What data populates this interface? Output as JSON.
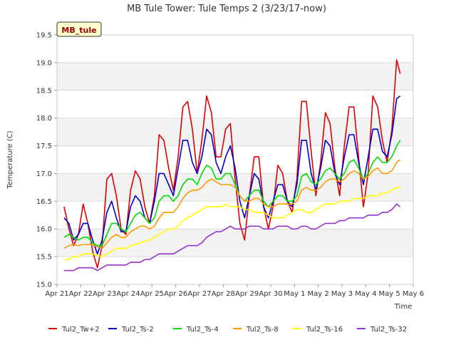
{
  "chart_data": {
    "type": "line",
    "title": "MB Tule Tower: Tule Temps 2 (3/23/17-now)",
    "xlabel": "Time",
    "ylabel": "Temperature (C)",
    "badge": "MB_tule",
    "ylim": [
      15.0,
      19.5
    ],
    "xlim": [
      0,
      15
    ],
    "yticks": [
      15.0,
      15.5,
      16.0,
      16.5,
      17.0,
      17.5,
      18.0,
      18.5,
      19.0,
      19.5
    ],
    "ytick_labels": [
      "15.0",
      "15.5",
      "16.0",
      "16.5",
      "17.0",
      "17.5",
      "18.0",
      "18.5",
      "19.0",
      "19.5"
    ],
    "xticks": [
      0,
      1,
      2,
      3,
      4,
      5,
      6,
      7,
      8,
      9,
      10,
      11,
      12,
      13,
      14,
      15
    ],
    "xtick_labels": [
      "Apr 21",
      "Apr 22",
      "Apr 23",
      "Apr 24",
      "Apr 25",
      "Apr 26",
      "Apr 27",
      "Apr 28",
      "Apr 29",
      "Apr 30",
      "May 1",
      "May 2",
      "May 3",
      "May 4",
      "May 5",
      "May 6"
    ],
    "legend_position": "bottom",
    "grid": true,
    "series": [
      {
        "name": "Tul2_Tw+2",
        "color": "#dd0000",
        "x": [
          0.3,
          0.5,
          0.7,
          0.9,
          1.1,
          1.3,
          1.5,
          1.7,
          1.9,
          2.1,
          2.3,
          2.5,
          2.7,
          2.9,
          3.1,
          3.3,
          3.5,
          3.7,
          3.9,
          4.1,
          4.3,
          4.5,
          4.7,
          4.9,
          5.1,
          5.3,
          5.5,
          5.7,
          5.9,
          6.1,
          6.3,
          6.5,
          6.7,
          6.9,
          7.1,
          7.3,
          7.5,
          7.7,
          7.9,
          8.1,
          8.3,
          8.5,
          8.7,
          8.9,
          9.1,
          9.3,
          9.5,
          9.7,
          9.9,
          10.1,
          10.3,
          10.5,
          10.7,
          10.9,
          11.1,
          11.3,
          11.5,
          11.7,
          11.9,
          12.1,
          12.3,
          12.5,
          12.7,
          12.9,
          13.1,
          13.3,
          13.5,
          13.7,
          13.9,
          14.1,
          14.3,
          14.45
        ],
        "y": [
          16.4,
          16.0,
          15.7,
          15.9,
          16.45,
          16.1,
          15.6,
          15.3,
          15.7,
          16.9,
          17.0,
          16.6,
          16.0,
          15.9,
          16.7,
          17.05,
          16.9,
          16.4,
          16.1,
          16.6,
          17.7,
          17.6,
          17.1,
          16.7,
          17.3,
          18.2,
          18.3,
          17.8,
          17.0,
          17.6,
          18.4,
          18.1,
          17.3,
          17.3,
          17.8,
          17.9,
          16.9,
          16.1,
          15.8,
          16.6,
          17.3,
          17.3,
          16.4,
          16.0,
          16.4,
          17.15,
          17.0,
          16.5,
          16.3,
          16.9,
          18.3,
          18.3,
          17.4,
          16.6,
          17.2,
          18.1,
          17.9,
          17.1,
          16.6,
          17.5,
          18.2,
          18.2,
          17.3,
          16.4,
          17.0,
          18.4,
          18.2,
          17.6,
          17.2,
          17.8,
          19.05,
          18.8
        ]
      },
      {
        "name": "Tul2_Ts-2",
        "color": "#0000cc",
        "x": [
          0.3,
          0.5,
          0.7,
          0.9,
          1.1,
          1.3,
          1.5,
          1.7,
          1.9,
          2.1,
          2.3,
          2.5,
          2.7,
          2.9,
          3.1,
          3.3,
          3.5,
          3.7,
          3.9,
          4.1,
          4.3,
          4.5,
          4.7,
          4.9,
          5.1,
          5.3,
          5.5,
          5.7,
          5.9,
          6.1,
          6.3,
          6.5,
          6.7,
          6.9,
          7.1,
          7.3,
          7.5,
          7.7,
          7.9,
          8.1,
          8.3,
          8.5,
          8.7,
          8.9,
          9.1,
          9.3,
          9.5,
          9.7,
          9.9,
          10.1,
          10.3,
          10.5,
          10.7,
          10.9,
          11.1,
          11.3,
          11.5,
          11.7,
          11.9,
          12.1,
          12.3,
          12.5,
          12.7,
          12.9,
          13.1,
          13.3,
          13.5,
          13.7,
          13.9,
          14.1,
          14.3,
          14.45
        ],
        "y": [
          16.2,
          16.1,
          15.8,
          15.9,
          16.1,
          16.1,
          15.8,
          15.55,
          15.8,
          16.3,
          16.5,
          16.2,
          15.95,
          15.95,
          16.4,
          16.6,
          16.5,
          16.2,
          16.1,
          16.5,
          17.0,
          17.0,
          16.8,
          16.6,
          17.1,
          17.6,
          17.6,
          17.2,
          17.0,
          17.3,
          17.8,
          17.7,
          17.2,
          17.0,
          17.3,
          17.5,
          17.1,
          16.5,
          16.2,
          16.6,
          17.0,
          16.9,
          16.4,
          16.2,
          16.5,
          16.8,
          16.8,
          16.5,
          16.4,
          16.8,
          17.6,
          17.6,
          17.0,
          16.7,
          17.1,
          17.6,
          17.5,
          17.0,
          16.8,
          17.3,
          17.7,
          17.7,
          17.2,
          16.8,
          17.3,
          17.8,
          17.8,
          17.4,
          17.3,
          17.7,
          18.35,
          18.4
        ]
      },
      {
        "name": "Tul2_Ts-4",
        "color": "#00dd00",
        "x": [
          0.3,
          0.5,
          0.7,
          0.9,
          1.1,
          1.3,
          1.5,
          1.7,
          1.9,
          2.1,
          2.3,
          2.5,
          2.7,
          2.9,
          3.1,
          3.3,
          3.5,
          3.7,
          3.9,
          4.1,
          4.3,
          4.5,
          4.7,
          4.9,
          5.1,
          5.3,
          5.5,
          5.7,
          5.9,
          6.1,
          6.3,
          6.5,
          6.7,
          6.9,
          7.1,
          7.3,
          7.5,
          7.7,
          7.9,
          8.1,
          8.3,
          8.5,
          8.7,
          8.9,
          9.1,
          9.3,
          9.5,
          9.7,
          9.9,
          10.1,
          10.3,
          10.5,
          10.7,
          10.9,
          11.1,
          11.3,
          11.5,
          11.7,
          11.9,
          12.1,
          12.3,
          12.5,
          12.7,
          12.9,
          13.1,
          13.3,
          13.5,
          13.7,
          13.9,
          14.1,
          14.3,
          14.45
        ],
        "y": [
          15.85,
          15.9,
          15.85,
          15.8,
          15.85,
          15.85,
          15.75,
          15.7,
          15.7,
          15.9,
          16.1,
          16.1,
          16.0,
          15.95,
          16.1,
          16.25,
          16.3,
          16.2,
          16.1,
          16.2,
          16.5,
          16.6,
          16.6,
          16.5,
          16.6,
          16.8,
          16.9,
          16.9,
          16.8,
          17.0,
          17.15,
          17.1,
          16.9,
          16.9,
          17.0,
          17.0,
          16.8,
          16.6,
          16.5,
          16.6,
          16.7,
          16.7,
          16.5,
          16.4,
          16.5,
          16.6,
          16.6,
          16.5,
          16.5,
          16.6,
          16.95,
          17.0,
          16.85,
          16.8,
          16.9,
          17.05,
          17.1,
          17.0,
          16.9,
          17.0,
          17.2,
          17.25,
          17.1,
          16.9,
          17.0,
          17.2,
          17.3,
          17.2,
          17.2,
          17.3,
          17.5,
          17.6
        ]
      },
      {
        "name": "Tul2_Ts-8",
        "color": "#ff9900",
        "x": [
          0.3,
          0.5,
          0.7,
          0.9,
          1.1,
          1.3,
          1.5,
          1.7,
          1.9,
          2.1,
          2.3,
          2.5,
          2.7,
          2.9,
          3.1,
          3.3,
          3.5,
          3.7,
          3.9,
          4.1,
          4.3,
          4.5,
          4.7,
          4.9,
          5.1,
          5.3,
          5.5,
          5.7,
          5.9,
          6.1,
          6.3,
          6.5,
          6.7,
          6.9,
          7.1,
          7.3,
          7.5,
          7.7,
          7.9,
          8.1,
          8.3,
          8.5,
          8.7,
          8.9,
          9.1,
          9.3,
          9.5,
          9.7,
          9.9,
          10.1,
          10.3,
          10.5,
          10.7,
          10.9,
          11.1,
          11.3,
          11.5,
          11.7,
          11.9,
          12.1,
          12.3,
          12.5,
          12.7,
          12.9,
          13.1,
          13.3,
          13.5,
          13.7,
          13.9,
          14.1,
          14.3,
          14.45
        ],
        "y": [
          15.65,
          15.7,
          15.72,
          15.7,
          15.72,
          15.72,
          15.72,
          15.68,
          15.65,
          15.75,
          15.85,
          15.9,
          15.85,
          15.85,
          15.95,
          16.0,
          16.05,
          16.05,
          16.0,
          16.05,
          16.2,
          16.3,
          16.3,
          16.3,
          16.4,
          16.55,
          16.65,
          16.7,
          16.7,
          16.75,
          16.85,
          16.9,
          16.85,
          16.8,
          16.8,
          16.8,
          16.75,
          16.6,
          16.5,
          16.5,
          16.55,
          16.55,
          16.45,
          16.4,
          16.4,
          16.45,
          16.45,
          16.45,
          16.45,
          16.5,
          16.7,
          16.75,
          16.7,
          16.7,
          16.75,
          16.85,
          16.9,
          16.9,
          16.85,
          16.9,
          17.0,
          17.05,
          17.0,
          16.9,
          16.95,
          17.05,
          17.1,
          17.0,
          17.0,
          17.05,
          17.2,
          17.25
        ]
      },
      {
        "name": "Tul2_Ts-16",
        "color": "#ffff00",
        "x": [
          0.3,
          0.5,
          0.7,
          0.9,
          1.1,
          1.3,
          1.5,
          1.7,
          1.9,
          2.1,
          2.3,
          2.5,
          2.7,
          2.9,
          3.1,
          3.3,
          3.5,
          3.7,
          3.9,
          4.1,
          4.3,
          4.5,
          4.7,
          4.9,
          5.1,
          5.3,
          5.5,
          5.7,
          5.9,
          6.1,
          6.3,
          6.5,
          6.7,
          6.9,
          7.1,
          7.3,
          7.5,
          7.7,
          7.9,
          8.1,
          8.3,
          8.5,
          8.7,
          8.9,
          9.1,
          9.3,
          9.5,
          9.7,
          9.9,
          10.1,
          10.3,
          10.5,
          10.7,
          10.9,
          11.1,
          11.3,
          11.5,
          11.7,
          11.9,
          12.1,
          12.3,
          12.5,
          12.7,
          12.9,
          13.1,
          13.3,
          13.5,
          13.7,
          13.9,
          14.1,
          14.3,
          14.45
        ],
        "y": [
          15.45,
          15.45,
          15.5,
          15.5,
          15.55,
          15.55,
          15.55,
          15.52,
          15.5,
          15.55,
          15.6,
          15.65,
          15.65,
          15.65,
          15.7,
          15.72,
          15.75,
          15.78,
          15.8,
          15.85,
          15.9,
          15.95,
          16.0,
          16.0,
          16.05,
          16.15,
          16.2,
          16.25,
          16.3,
          16.35,
          16.4,
          16.4,
          16.4,
          16.4,
          16.45,
          16.4,
          16.4,
          16.4,
          16.35,
          16.35,
          16.3,
          16.3,
          16.3,
          16.25,
          16.2,
          16.2,
          16.2,
          16.25,
          16.3,
          16.35,
          16.35,
          16.3,
          16.3,
          16.35,
          16.4,
          16.45,
          16.45,
          16.45,
          16.5,
          16.5,
          16.5,
          16.55,
          16.55,
          16.55,
          16.6,
          16.6,
          16.6,
          16.65,
          16.65,
          16.7,
          16.75,
          16.75
        ]
      },
      {
        "name": "Tul2_Ts-32",
        "color": "#9933cc",
        "x": [
          0.3,
          0.5,
          0.7,
          0.9,
          1.1,
          1.3,
          1.5,
          1.7,
          1.9,
          2.1,
          2.3,
          2.5,
          2.7,
          2.9,
          3.1,
          3.3,
          3.5,
          3.7,
          3.9,
          4.1,
          4.3,
          4.5,
          4.7,
          4.9,
          5.1,
          5.3,
          5.5,
          5.7,
          5.9,
          6.1,
          6.3,
          6.5,
          6.7,
          6.9,
          7.1,
          7.3,
          7.5,
          7.7,
          7.9,
          8.1,
          8.3,
          8.5,
          8.7,
          8.9,
          9.1,
          9.3,
          9.5,
          9.7,
          9.9,
          10.1,
          10.3,
          10.5,
          10.7,
          10.9,
          11.1,
          11.3,
          11.5,
          11.7,
          11.9,
          12.1,
          12.3,
          12.5,
          12.7,
          12.9,
          13.1,
          13.3,
          13.5,
          13.7,
          13.9,
          14.1,
          14.3,
          14.45
        ],
        "y": [
          15.25,
          15.25,
          15.25,
          15.3,
          15.3,
          15.3,
          15.3,
          15.25,
          15.3,
          15.35,
          15.35,
          15.35,
          15.35,
          15.35,
          15.4,
          15.4,
          15.4,
          15.45,
          15.45,
          15.5,
          15.55,
          15.55,
          15.55,
          15.55,
          15.6,
          15.65,
          15.7,
          15.7,
          15.7,
          15.75,
          15.85,
          15.9,
          15.95,
          15.95,
          16.0,
          16.05,
          16.0,
          16.0,
          16.0,
          16.05,
          16.05,
          16.05,
          16.0,
          16.0,
          16.0,
          16.05,
          16.05,
          16.05,
          16.0,
          16.0,
          16.05,
          16.05,
          16.0,
          16.0,
          16.05,
          16.1,
          16.1,
          16.1,
          16.15,
          16.15,
          16.2,
          16.2,
          16.2,
          16.2,
          16.25,
          16.25,
          16.25,
          16.3,
          16.3,
          16.35,
          16.45,
          16.4
        ]
      }
    ]
  }
}
